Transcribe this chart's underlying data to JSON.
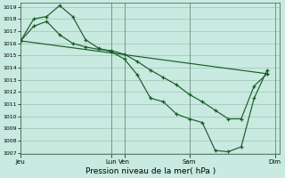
{
  "title": "Pression niveau de la mer( hPa )",
  "bg_color": "#c8eae0",
  "grid_color": "#a8c8bc",
  "line_color": "#1a5c28",
  "ylim": [
    1007,
    1019
  ],
  "yticks": [
    1007,
    1008,
    1009,
    1010,
    1011,
    1012,
    1013,
    1014,
    1015,
    1016,
    1017,
    1018,
    1019
  ],
  "xlim": [
    0,
    10
  ],
  "xtick_positions": [
    0,
    3.5,
    4.0,
    6.5,
    9.8
  ],
  "xtick_labels": [
    "Jeu",
    "Lun",
    "Ven",
    "Sam",
    "Dim"
  ],
  "vline_positions": [
    0,
    3.5,
    4.0,
    6.5,
    9.8
  ],
  "line1_x": [
    0,
    0.5,
    1.0,
    1.5,
    2.0,
    2.5,
    3.0,
    3.5,
    4.0,
    4.5,
    5.0,
    5.5,
    6.0,
    6.5,
    7.0,
    7.5,
    8.0,
    8.5,
    9.0,
    9.5
  ],
  "line1_y": [
    1016.2,
    1018.0,
    1018.2,
    1019.1,
    1018.2,
    1016.3,
    1015.6,
    1015.3,
    1014.7,
    1013.4,
    1011.5,
    1011.2,
    1010.2,
    1009.8,
    1009.5,
    1007.2,
    1007.1,
    1007.5,
    1011.5,
    1013.8
  ],
  "line2_x": [
    0,
    0.5,
    1.0,
    1.5,
    2.0,
    2.5,
    3.0,
    3.5,
    4.0,
    4.5,
    5.0,
    5.5,
    6.0,
    6.5,
    7.0,
    7.5,
    8.0,
    8.5,
    9.0,
    9.5
  ],
  "line2_y": [
    1016.2,
    1017.4,
    1017.8,
    1016.7,
    1016.0,
    1015.7,
    1015.5,
    1015.4,
    1015.1,
    1014.5,
    1013.8,
    1013.2,
    1012.6,
    1011.8,
    1011.2,
    1010.5,
    1009.8,
    1009.8,
    1012.5,
    1013.5
  ],
  "line3_x": [
    0,
    9.5
  ],
  "line3_y": [
    1016.2,
    1013.5
  ]
}
